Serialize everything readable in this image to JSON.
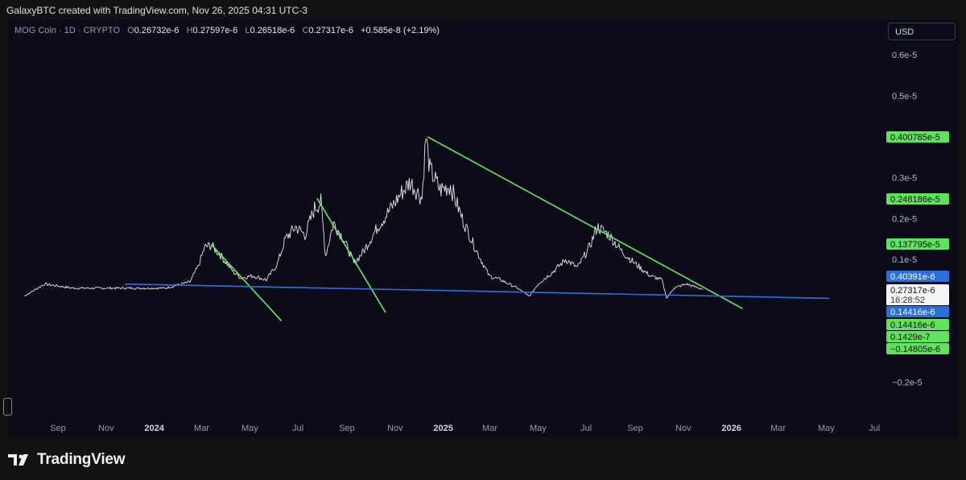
{
  "header": {
    "caption": "GalaxyBTC created with TradingView.com, Nov 26, 2025 04:31 UTC-3"
  },
  "legend": {
    "symbol": "MOG Coin · 1D · CRYPTO",
    "o_label": "O",
    "o_value": "0.26732e-6",
    "h_label": "H",
    "h_value": "0.27597e-6",
    "l_label": "L",
    "l_value": "0.26518e-6",
    "c_label": "C",
    "c_value": "0.27317e-6",
    "change": "+0.585e-8 (+2.19%)"
  },
  "currency_button": "USD",
  "brand": {
    "name": "TradingView",
    "icon": "tradingview-logo-icon"
  },
  "colors": {
    "background": "#0b0c17",
    "price": "#e6e6e6",
    "trend_green": "#66e86b",
    "support_blue": "#2f6fe0",
    "label_green": "#5ee35c",
    "label_blue": "#2b6fd8"
  },
  "chart_data": {
    "type": "line",
    "title": "MOG Coin · 1D · CRYPTO",
    "ylabel": "",
    "xlabel": "",
    "y_ticks": [
      "0.6e-5",
      "0.5e-5",
      "0.3e-5",
      "0.2e-5",
      "0.1e-5",
      "−0.2e-5"
    ],
    "x_ticks": [
      "Sep",
      "Nov",
      "2024",
      "Mar",
      "May",
      "Jul",
      "Sep",
      "Nov",
      "2025",
      "Mar",
      "May",
      "Jul",
      "Sep",
      "Nov",
      "2026",
      "Mar",
      "May",
      "Jul"
    ],
    "ylim": [
      -2.5e-06,
      6.5e-06
    ],
    "price_series": {
      "name": "MOG Coin",
      "points": [
        [
          "2023-07-20",
          1e-07
        ],
        [
          "2023-08-15",
          4e-07
        ],
        [
          "2023-09-20",
          3e-07
        ],
        [
          "2023-11-15",
          3e-07
        ],
        [
          "2024-01-15",
          3e-07
        ],
        [
          "2024-02-15",
          4.5e-07
        ],
        [
          "2024-02-25",
          8e-07
        ],
        [
          "2024-03-05",
          1.3e-06
        ],
        [
          "2024-03-13",
          1.35e-06
        ],
        [
          "2024-03-25",
          1.1e-06
        ],
        [
          "2024-04-10",
          7e-07
        ],
        [
          "2024-04-20",
          5.5e-07
        ],
        [
          "2024-05-05",
          6e-07
        ],
        [
          "2024-05-22",
          5e-07
        ],
        [
          "2024-06-05",
          9e-07
        ],
        [
          "2024-06-15",
          1.5e-06
        ],
        [
          "2024-06-28",
          1.8e-06
        ],
        [
          "2024-07-10",
          1.6e-06
        ],
        [
          "2024-07-22",
          2.25e-06
        ],
        [
          "2024-07-30",
          2.4e-06
        ],
        [
          "2024-08-05",
          1.1e-06
        ],
        [
          "2024-08-15",
          1.9e-06
        ],
        [
          "2024-08-28",
          1.5e-06
        ],
        [
          "2024-09-10",
          9e-07
        ],
        [
          "2024-09-22",
          1.2e-06
        ],
        [
          "2024-10-10",
          1.8e-06
        ],
        [
          "2024-10-25",
          2.2e-06
        ],
        [
          "2024-11-08",
          2.6e-06
        ],
        [
          "2024-11-20",
          2.9e-06
        ],
        [
          "2024-12-05",
          2.5e-06
        ],
        [
          "2024-12-10",
          4e-06
        ],
        [
          "2024-12-15",
          3.2e-06
        ],
        [
          "2024-12-28",
          2.7e-06
        ],
        [
          "2025-01-10",
          2.8e-06
        ],
        [
          "2025-01-25",
          2e-06
        ],
        [
          "2025-02-10",
          1.3e-06
        ],
        [
          "2025-02-28",
          6e-07
        ],
        [
          "2025-03-15",
          5e-07
        ],
        [
          "2025-04-05",
          3e-07
        ],
        [
          "2025-04-20",
          1e-07
        ],
        [
          "2025-05-01",
          4e-07
        ],
        [
          "2025-05-20",
          7e-07
        ],
        [
          "2025-06-05",
          1e-06
        ],
        [
          "2025-06-20",
          8e-07
        ],
        [
          "2025-07-05",
          1.3e-06
        ],
        [
          "2025-07-15",
          1.8e-06
        ],
        [
          "2025-07-30",
          1.6e-06
        ],
        [
          "2025-08-15",
          1.2e-06
        ],
        [
          "2025-09-01",
          9e-07
        ],
        [
          "2025-09-20",
          6e-07
        ],
        [
          "2025-10-05",
          5e-07
        ],
        [
          "2025-10-11",
          5e-08
        ],
        [
          "2025-10-20",
          3e-07
        ],
        [
          "2025-11-05",
          4e-07
        ],
        [
          "2025-11-26",
          2.7e-07
        ]
      ]
    },
    "trendlines": [
      {
        "color": "green",
        "from": [
          "2024-03-13",
          1.37e-06
        ],
        "to": [
          "2024-06-10",
          -5e-07
        ]
      },
      {
        "color": "green",
        "from": [
          "2024-07-25",
          2.5e-06
        ],
        "to": [
          "2024-10-20",
          -3e-07
        ]
      },
      {
        "color": "green",
        "from": [
          "2024-12-12",
          4e-06
        ],
        "to": [
          "2026-01-15",
          -2e-07
        ]
      },
      {
        "color": "blue",
        "from": [
          "2023-11-25",
          4e-07
        ],
        "to": [
          "2026-05-05",
          5e-08
        ]
      }
    ],
    "price_labels": [
      {
        "value": 4.00785e-06,
        "text": "0.400785e-5",
        "style": "green"
      },
      {
        "value": 2.48186e-06,
        "text": "0.248186e-5",
        "style": "green"
      },
      {
        "value": 1.37795e-06,
        "text": "0.137795e-5",
        "style": "green"
      },
      {
        "value": 4.0391e-07,
        "text": "0.40391e-6",
        "style": "blue"
      },
      {
        "value": 2.7317e-07,
        "text": "0.27317e-6",
        "style": "white",
        "sub": "16:28:52"
      },
      {
        "value": 1.4416e-07,
        "text": "0.14416e-6",
        "style": "blue"
      },
      {
        "value": 1.4416e-07,
        "text": "0.14416e-6",
        "style": "green"
      },
      {
        "value": 1.429e-08,
        "text": "0.1429e-7",
        "style": "green"
      },
      {
        "value": -1.4805e-07,
        "text": "−0.14805e-6",
        "style": "green"
      }
    ]
  }
}
